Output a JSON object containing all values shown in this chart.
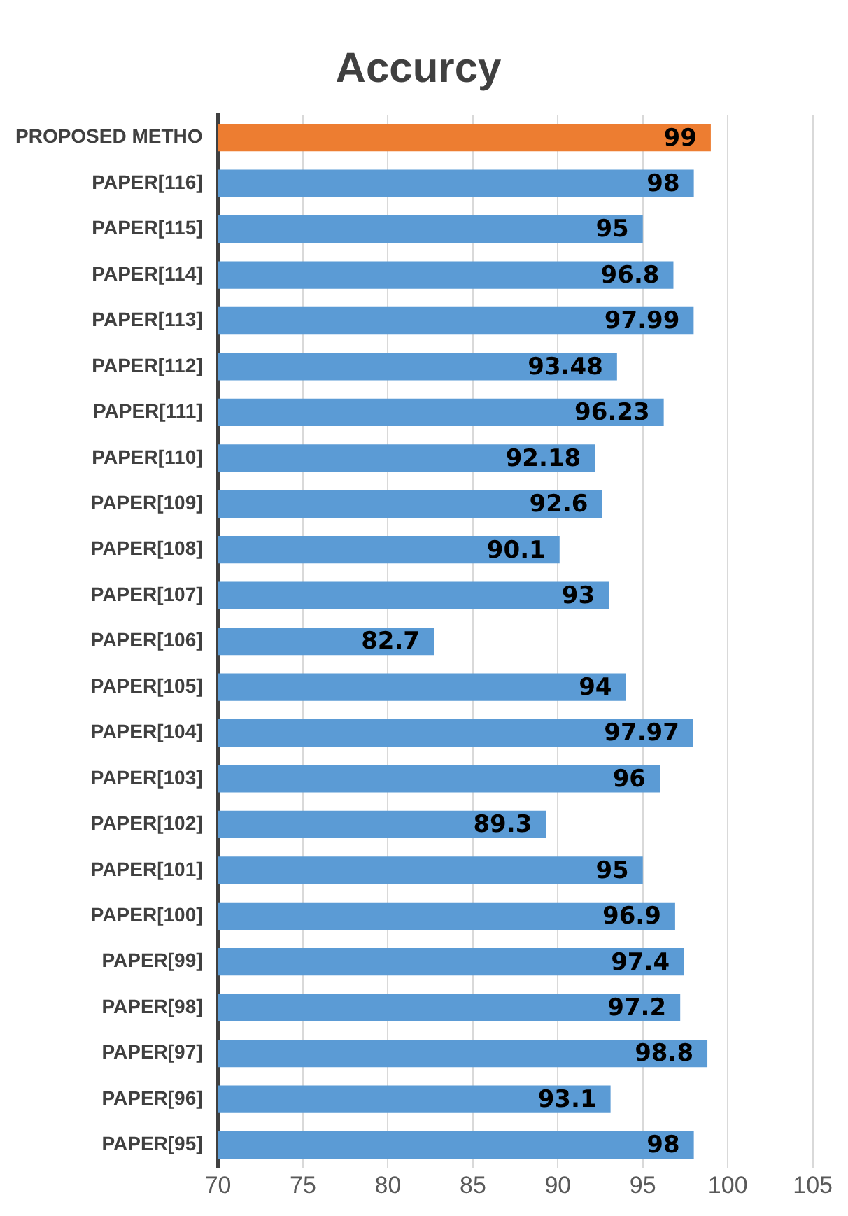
{
  "chart_data": {
    "type": "bar",
    "orientation": "horizontal",
    "title": "Accurcy",
    "categories": [
      "PROPOSED METHO",
      "PAPER[116]",
      "PAPER[115]",
      "PAPER[114]",
      "PAPER[113]",
      "PAPER[112]",
      "PAPER[111]",
      "PAPER[110]",
      "PAPER[109]",
      "PAPER[108]",
      "PAPER[107]",
      "PAPER[106]",
      "PAPER[105]",
      "PAPER[104]",
      "PAPER[103]",
      "PAPER[102]",
      "PAPER[101]",
      "PAPER[100]",
      "PAPER[99]",
      "PAPER[98]",
      "PAPER[97]",
      "PAPER[96]",
      "PAPER[95]"
    ],
    "values": [
      99,
      98,
      95,
      96.8,
      97.99,
      93.48,
      96.23,
      92.18,
      92.6,
      90.1,
      93,
      82.7,
      94,
      97.97,
      96,
      89.3,
      95,
      96.9,
      97.4,
      97.2,
      98.8,
      93.1,
      98
    ],
    "colors": [
      "#ed7d31",
      "#5b9bd5",
      "#5b9bd5",
      "#5b9bd5",
      "#5b9bd5",
      "#5b9bd5",
      "#5b9bd5",
      "#5b9bd5",
      "#5b9bd5",
      "#5b9bd5",
      "#5b9bd5",
      "#5b9bd5",
      "#5b9bd5",
      "#5b9bd5",
      "#5b9bd5",
      "#5b9bd5",
      "#5b9bd5",
      "#5b9bd5",
      "#5b9bd5",
      "#5b9bd5",
      "#5b9bd5",
      "#5b9bd5",
      "#5b9bd5"
    ],
    "xlim": [
      70,
      105
    ],
    "xticks": [
      70,
      75,
      80,
      85,
      90,
      95,
      100,
      105
    ],
    "grid": "x",
    "data_labels": true
  }
}
